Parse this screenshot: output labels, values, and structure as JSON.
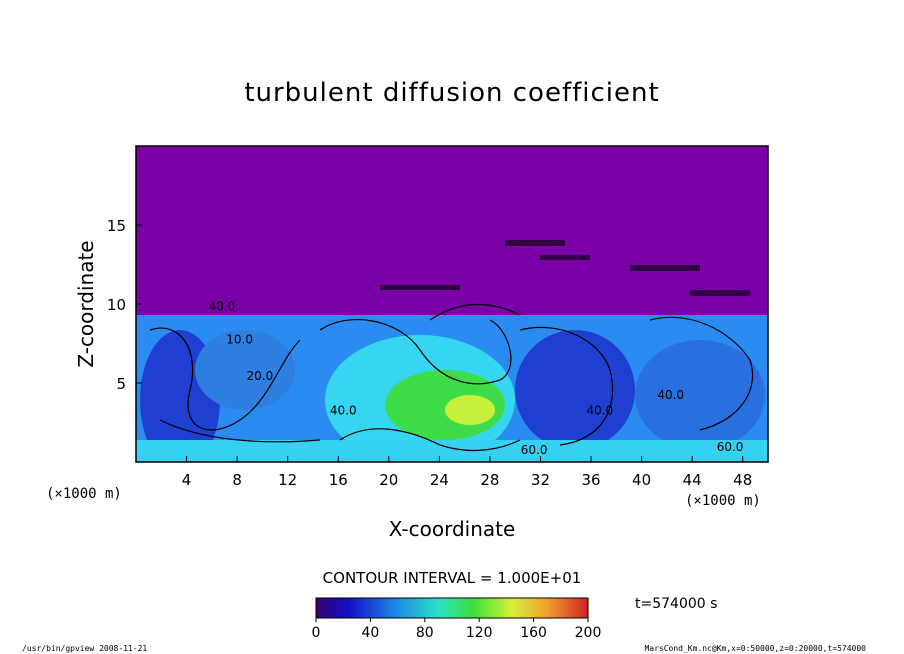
{
  "chart_data": {
    "type": "heatmap",
    "title": "turbulent diffusion coefficient",
    "xlabel": "X-coordinate",
    "ylabel": "Z-coordinate",
    "x_unit": "(×1000 m)",
    "z_unit": "(×1000 m)",
    "x_ticks": [
      4,
      8,
      12,
      16,
      20,
      24,
      28,
      32,
      36,
      40,
      44,
      48
    ],
    "z_ticks": [
      5,
      10,
      15
    ],
    "xlim": [
      0,
      50
    ],
    "ylim": [
      0,
      20
    ],
    "contour_interval_text": "CONTOUR INTERVAL = 1.000E+01",
    "colorbar_ticks": [
      0,
      40,
      80,
      120,
      160,
      200
    ],
    "colorbar_range": [
      0,
      200
    ],
    "time_label": "t=574000 s",
    "contour_labels": [
      {
        "text": "40.0",
        "x": 6.8,
        "z": 9.6
      },
      {
        "text": "10.0",
        "x": 8.2,
        "z": 7.5
      },
      {
        "text": "20.0",
        "x": 9.8,
        "z": 5.2
      },
      {
        "text": "40.0",
        "x": 16.4,
        "z": 3.0
      },
      {
        "text": "60.0",
        "x": 31.5,
        "z": 0.5
      },
      {
        "text": "40.0",
        "x": 36.7,
        "z": 3.0
      },
      {
        "text": "40.0",
        "x": 42.3,
        "z": 4.0
      },
      {
        "text": "60.0",
        "x": 47.0,
        "z": 0.7
      }
    ],
    "colors": {
      "upper_layer": "#7a00a8",
      "deep_blue": "#1f3fd0",
      "mid_blue": "#2f7fe6",
      "cyan": "#36d6f0",
      "green": "#3fdc4a",
      "yellow_green": "#c6f03a"
    }
  },
  "footer": {
    "left": "/usr/bin/gpview   2008-11-21",
    "right": "MarsCond_Km.nc@Km,x=0:50000,z=0:20000,t=574000"
  }
}
